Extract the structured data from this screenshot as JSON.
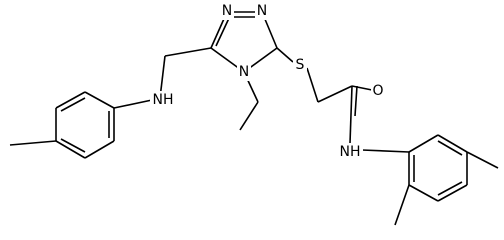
{
  "atoms": [
    {
      "label": "N"
    },
    {
      "label": "N"
    },
    {
      "label": "N"
    },
    {
      "label": "S"
    },
    {
      "label": "NH"
    },
    {
      "label": "O"
    },
    {
      "label": "NH"
    }
  ]
}
